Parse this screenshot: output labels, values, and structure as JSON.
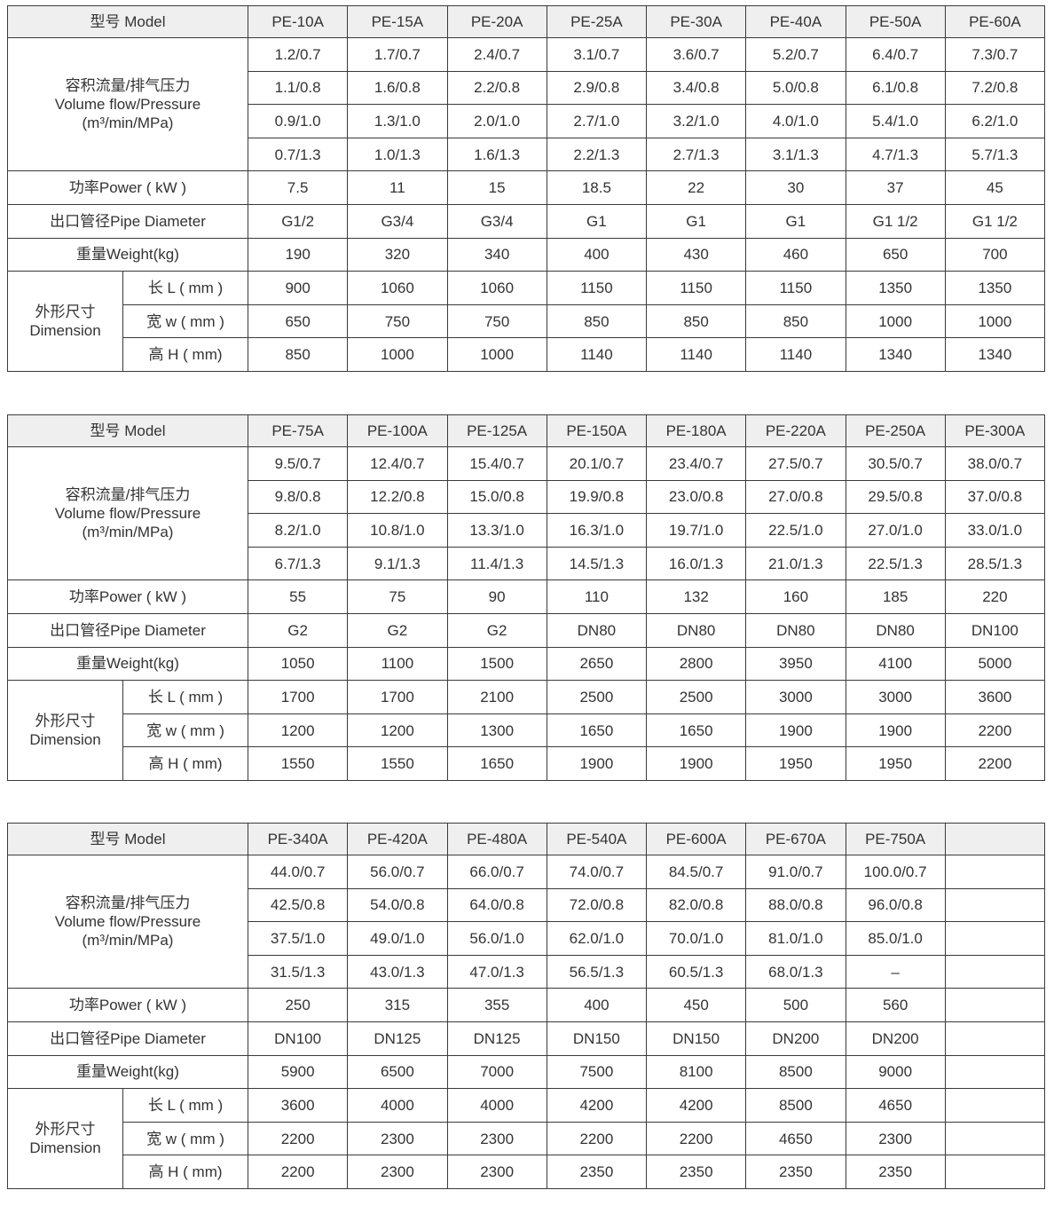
{
  "tables": [
    {
      "model_label": "型号  Model",
      "models": [
        "PE-10A",
        "PE-15A",
        "PE-20A",
        "PE-25A",
        "PE-30A",
        "PE-40A",
        "PE-50A",
        "PE-60A"
      ],
      "flow_label_cn": "容积流量/排气压力",
      "flow_label_en": "Volume flow/Pressure",
      "flow_unit": "(m³/min/MPa)",
      "flow_rows": [
        [
          "1.2/0.7",
          "1.7/0.7",
          "2.4/0.7",
          "3.1/0.7",
          "3.6/0.7",
          "5.2/0.7",
          "6.4/0.7",
          "7.3/0.7"
        ],
        [
          "1.1/0.8",
          "1.6/0.8",
          "2.2/0.8",
          "2.9/0.8",
          "3.4/0.8",
          "5.0/0.8",
          "6.1/0.8",
          "7.2/0.8"
        ],
        [
          "0.9/1.0",
          "1.3/1.0",
          "2.0/1.0",
          "2.7/1.0",
          "3.2/1.0",
          "4.0/1.0",
          "5.4/1.0",
          "6.2/1.0"
        ],
        [
          "0.7/1.3",
          "1.0/1.3",
          "1.6/1.3",
          "2.2/1.3",
          "2.7/1.3",
          "3.1/1.3",
          "4.7/1.3",
          "5.7/1.3"
        ]
      ],
      "power_label": "功率Power ( kW )",
      "power": [
        "7.5",
        "11",
        "15",
        "18.5",
        "22",
        "30",
        "37",
        "45"
      ],
      "pipe_label": "出口管径Pipe Diameter",
      "pipe": [
        "G1/2",
        "G3/4",
        "G3/4",
        "G1",
        "G1",
        "G1",
        "G1 1/2",
        "G1 1/2"
      ],
      "weight_label": "重量Weight(kg)",
      "weight": [
        "190",
        "320",
        "340",
        "400",
        "430",
        "460",
        "650",
        "700"
      ],
      "dim_label_cn": "外形尺寸",
      "dim_label_en": "Dimension",
      "dims": [
        {
          "label": "长 L ( mm )",
          "values": [
            "900",
            "1060",
            "1060",
            "1150",
            "1150",
            "1150",
            "1350",
            "1350"
          ]
        },
        {
          "label": "宽  w ( mm )",
          "values": [
            "650",
            "750",
            "750",
            "850",
            "850",
            "850",
            "1000",
            "1000"
          ]
        },
        {
          "label": "高  H ( mm)",
          "values": [
            "850",
            "1000",
            "1000",
            "1140",
            "1140",
            "1140",
            "1340",
            "1340"
          ]
        }
      ]
    },
    {
      "model_label": "型号  Model",
      "models": [
        "PE-75A",
        "PE-100A",
        "PE-125A",
        "PE-150A",
        "PE-180A",
        "PE-220A",
        "PE-250A",
        "PE-300A"
      ],
      "flow_label_cn": "容积流量/排气压力",
      "flow_label_en": "Volume flow/Pressure",
      "flow_unit": "(m³/min/MPa)",
      "flow_rows": [
        [
          "9.5/0.7",
          "12.4/0.7",
          "15.4/0.7",
          "20.1/0.7",
          "23.4/0.7",
          "27.5/0.7",
          "30.5/0.7",
          "38.0/0.7"
        ],
        [
          "9.8/0.8",
          "12.2/0.8",
          "15.0/0.8",
          "19.9/0.8",
          "23.0/0.8",
          "27.0/0.8",
          "29.5/0.8",
          "37.0/0.8"
        ],
        [
          "8.2/1.0",
          "10.8/1.0",
          "13.3/1.0",
          "16.3/1.0",
          "19.7/1.0",
          "22.5/1.0",
          "27.0/1.0",
          "33.0/1.0"
        ],
        [
          "6.7/1.3",
          "9.1/1.3",
          "11.4/1.3",
          "14.5/1.3",
          "16.0/1.3",
          "21.0/1.3",
          "22.5/1.3",
          "28.5/1.3"
        ]
      ],
      "power_label": "功率Power ( kW )",
      "power": [
        "55",
        "75",
        "90",
        "110",
        "132",
        "160",
        "185",
        "220"
      ],
      "pipe_label": "出口管径Pipe Diameter",
      "pipe": [
        "G2",
        "G2",
        "G2",
        "DN80",
        "DN80",
        "DN80",
        "DN80",
        "DN100"
      ],
      "weight_label": "重量Weight(kg)",
      "weight": [
        "1050",
        "1100",
        "1500",
        "2650",
        "2800",
        "3950",
        "4100",
        "5000"
      ],
      "dim_label_cn": "外形尺寸",
      "dim_label_en": "Dimension",
      "dims": [
        {
          "label": "长 L ( mm )",
          "values": [
            "1700",
            "1700",
            "2100",
            "2500",
            "2500",
            "3000",
            "3000",
            "3600"
          ]
        },
        {
          "label": "宽  w ( mm )",
          "values": [
            "1200",
            "1200",
            "1300",
            "1650",
            "1650",
            "1900",
            "1900",
            "2200"
          ]
        },
        {
          "label": "高  H ( mm)",
          "values": [
            "1550",
            "1550",
            "1650",
            "1900",
            "1900",
            "1950",
            "1950",
            "2200"
          ]
        }
      ]
    },
    {
      "model_label": "型号  Model",
      "models": [
        "PE-340A",
        "PE-420A",
        "PE-480A",
        "PE-540A",
        "PE-600A",
        "PE-670A",
        "PE-750A",
        ""
      ],
      "flow_label_cn": "容积流量/排气压力",
      "flow_label_en": "Volume flow/Pressure",
      "flow_unit": "(m³/min/MPa)",
      "flow_rows": [
        [
          "44.0/0.7",
          "56.0/0.7",
          "66.0/0.7",
          "74.0/0.7",
          "84.5/0.7",
          "91.0/0.7",
          "100.0/0.7",
          ""
        ],
        [
          "42.5/0.8",
          "54.0/0.8",
          "64.0/0.8",
          "72.0/0.8",
          "82.0/0.8",
          "88.0/0.8",
          "96.0/0.8",
          ""
        ],
        [
          "37.5/1.0",
          "49.0/1.0",
          "56.0/1.0",
          "62.0/1.0",
          "70.0/1.0",
          "81.0/1.0",
          "85.0/1.0",
          ""
        ],
        [
          "31.5/1.3",
          "43.0/1.3",
          "47.0/1.3",
          "56.5/1.3",
          "60.5/1.3",
          "68.0/1.3",
          "–",
          ""
        ]
      ],
      "power_label": "功率Power ( kW )",
      "power": [
        "250",
        "315",
        "355",
        "400",
        "450",
        "500",
        "560",
        ""
      ],
      "pipe_label": "出口管径Pipe Diameter",
      "pipe": [
        "DN100",
        "DN125",
        "DN125",
        "DN150",
        "DN150",
        "DN200",
        "DN200",
        ""
      ],
      "weight_label": "重量Weight(kg)",
      "weight": [
        "5900",
        "6500",
        "7000",
        "7500",
        "8100",
        "8500",
        "9000",
        ""
      ],
      "dim_label_cn": "外形尺寸",
      "dim_label_en": "Dimension",
      "dims": [
        {
          "label": "长 L ( mm )",
          "values": [
            "3600",
            "4000",
            "4000",
            "4200",
            "4200",
            "8500",
            "4650",
            ""
          ]
        },
        {
          "label": "宽  w ( mm )",
          "values": [
            "2200",
            "2300",
            "2300",
            "2200",
            "2200",
            "4650",
            "2300",
            ""
          ]
        },
        {
          "label": "高  H ( mm)",
          "values": [
            "2200",
            "2300",
            "2300",
            "2350",
            "2350",
            "2350",
            "2350",
            ""
          ]
        }
      ]
    }
  ]
}
